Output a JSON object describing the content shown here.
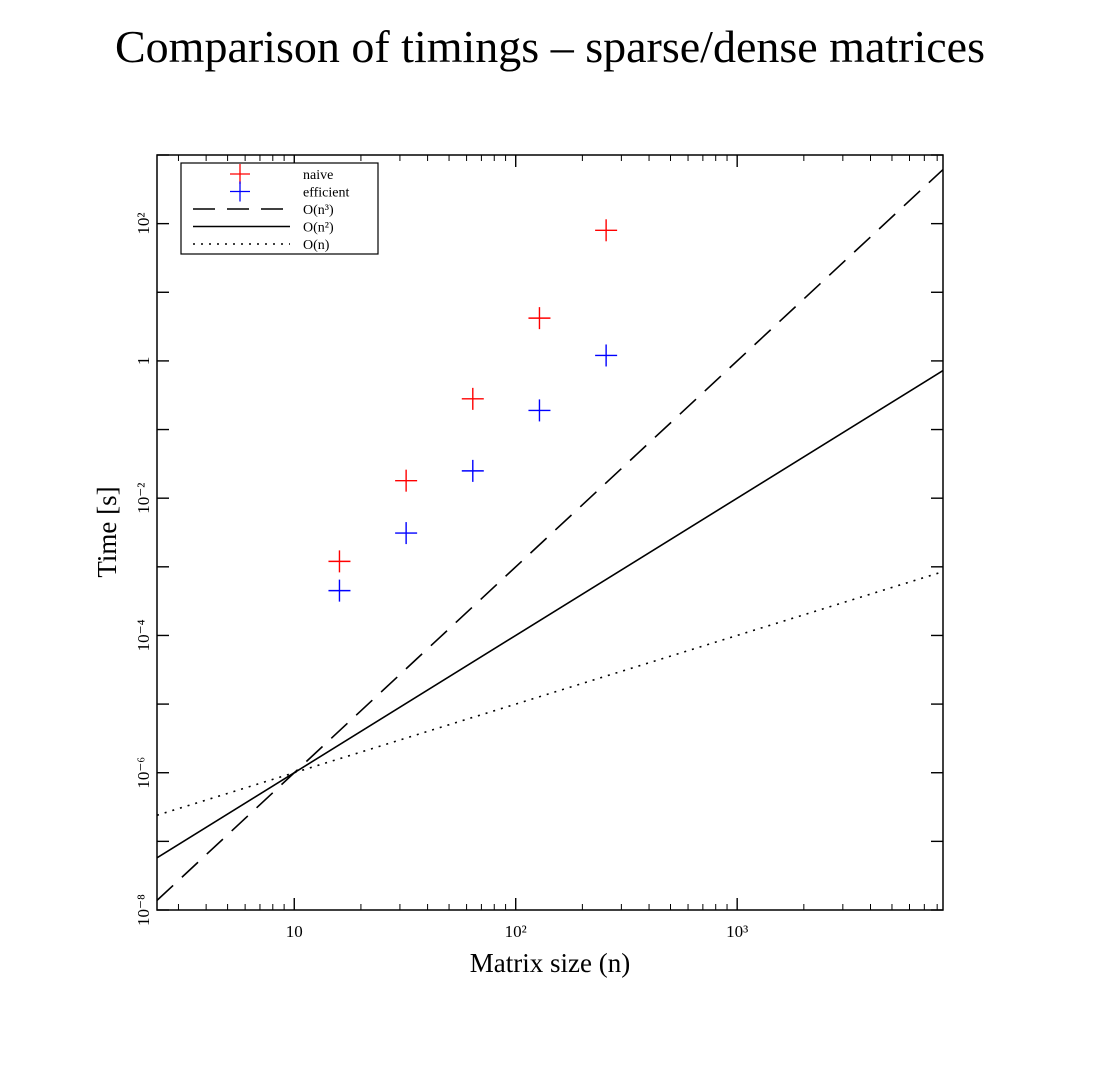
{
  "chart_data": {
    "type": "scatter",
    "title": "Comparison of timings – sparse/dense matrices",
    "xlabel": "Matrix size (n)",
    "ylabel": "Time [s]",
    "x_scale": "log",
    "y_scale": "log",
    "xlim": [
      2.4,
      8500
    ],
    "ylim": [
      1e-08,
      1000
    ],
    "grid": false,
    "legend_position": "top-left",
    "x_ticks": [
      {
        "value": 10,
        "label": "10"
      },
      {
        "value": 100,
        "label": "10²"
      },
      {
        "value": 1000,
        "label": "10³"
      }
    ],
    "y_ticks": [
      {
        "value": 1e-08,
        "label": "10⁻⁸"
      },
      {
        "value": 1e-06,
        "label": "10⁻⁶"
      },
      {
        "value": 0.0001,
        "label": "10⁻⁴"
      },
      {
        "value": 0.01,
        "label": "10⁻²"
      },
      {
        "value": 1,
        "label": "1"
      },
      {
        "value": 100,
        "label": "10²"
      }
    ],
    "series": [
      {
        "name": "naive",
        "kind": "points",
        "marker": "+",
        "color": "#ff0000",
        "x": [
          16,
          32,
          64,
          128,
          256
        ],
        "y": [
          0.0012,
          0.018,
          0.28,
          4.2,
          80
        ]
      },
      {
        "name": "efficient",
        "kind": "points",
        "marker": "+",
        "color": "#0000ff",
        "x": [
          16,
          32,
          64,
          128,
          256
        ],
        "y": [
          0.00045,
          0.0031,
          0.025,
          0.19,
          1.2
        ]
      },
      {
        "name": "O(n³)",
        "kind": "line",
        "dash": "dashed",
        "color": "#000000",
        "x": [
          2.4,
          8500
        ],
        "y": [
          1.38e-08,
          614
        ]
      },
      {
        "name": "O(n²)",
        "kind": "line",
        "dash": "solid",
        "color": "#000000",
        "x": [
          2.4,
          8500
        ],
        "y": [
          5.76e-08,
          0.7225
        ]
      },
      {
        "name": "O(n)",
        "kind": "line",
        "dash": "dotted",
        "color": "#000000",
        "x": [
          2.4,
          8500
        ],
        "y": [
          2.4e-07,
          0.00085
        ]
      }
    ]
  }
}
